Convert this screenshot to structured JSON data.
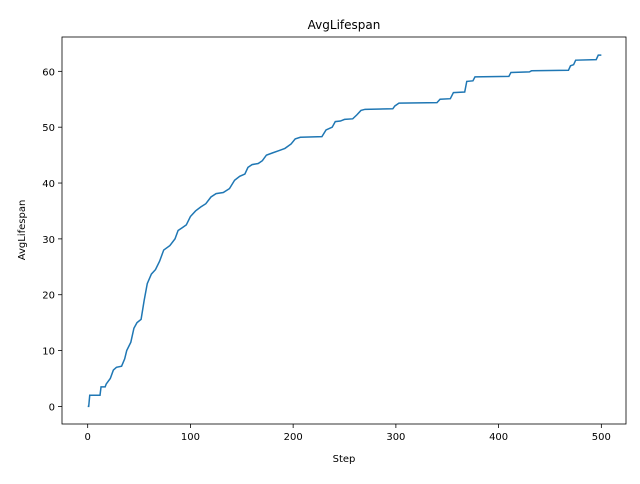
{
  "chart_data": {
    "type": "line",
    "title": "AvgLifespan",
    "x_label": "Step",
    "y_label": "AvgLifespan",
    "x": [
      0,
      1,
      2,
      12,
      13,
      17,
      18,
      22,
      25,
      28,
      33,
      36,
      38,
      42,
      45,
      48,
      52,
      55,
      58,
      62,
      66,
      70,
      74,
      80,
      85,
      88,
      92,
      96,
      100,
      105,
      110,
      115,
      120,
      125,
      132,
      138,
      143,
      148,
      153,
      156,
      160,
      166,
      170,
      174,
      180,
      186,
      192,
      198,
      202,
      207,
      228,
      232,
      238,
      241,
      246,
      250,
      258,
      262,
      266,
      270,
      297,
      299,
      303,
      340,
      343,
      353,
      356,
      367,
      369,
      375,
      377,
      410,
      412,
      430,
      432,
      468,
      470,
      473,
      475,
      495,
      497,
      500
    ],
    "series": [
      {
        "name": "AvgLifespan",
        "color": "#1f77b4",
        "values": [
          0,
          0,
          2,
          2,
          3.5,
          3.5,
          4,
          5,
          6.5,
          7,
          7.2,
          8.5,
          10,
          11.5,
          14,
          15,
          15.6,
          19,
          22,
          23.7,
          24.5,
          26,
          28,
          28.8,
          30,
          31.5,
          32,
          32.5,
          34,
          35,
          35.7,
          36.3,
          37.5,
          38.1,
          38.3,
          39,
          40.5,
          41.2,
          41.6,
          42.8,
          43.3,
          43.5,
          44,
          45,
          45.4,
          45.8,
          46.2,
          47,
          47.9,
          48.2,
          48.3,
          49.5,
          50,
          51,
          51.1,
          51.4,
          51.5,
          52.2,
          53,
          53.2,
          53.3,
          53.8,
          54.3,
          54.4,
          55,
          55.1,
          56.2,
          56.3,
          58.2,
          58.3,
          59,
          59.1,
          59.8,
          59.9,
          60.1,
          60.2,
          61,
          61.2,
          62,
          62.1,
          62.9,
          62.9
        ]
      }
    ],
    "xlim": [
      -25,
      524
    ],
    "ylim": [
      -3.15,
      66.15
    ],
    "xticks": [
      0,
      100,
      200,
      300,
      400,
      500
    ],
    "yticks": [
      0,
      10,
      20,
      30,
      40,
      50,
      60
    ]
  }
}
